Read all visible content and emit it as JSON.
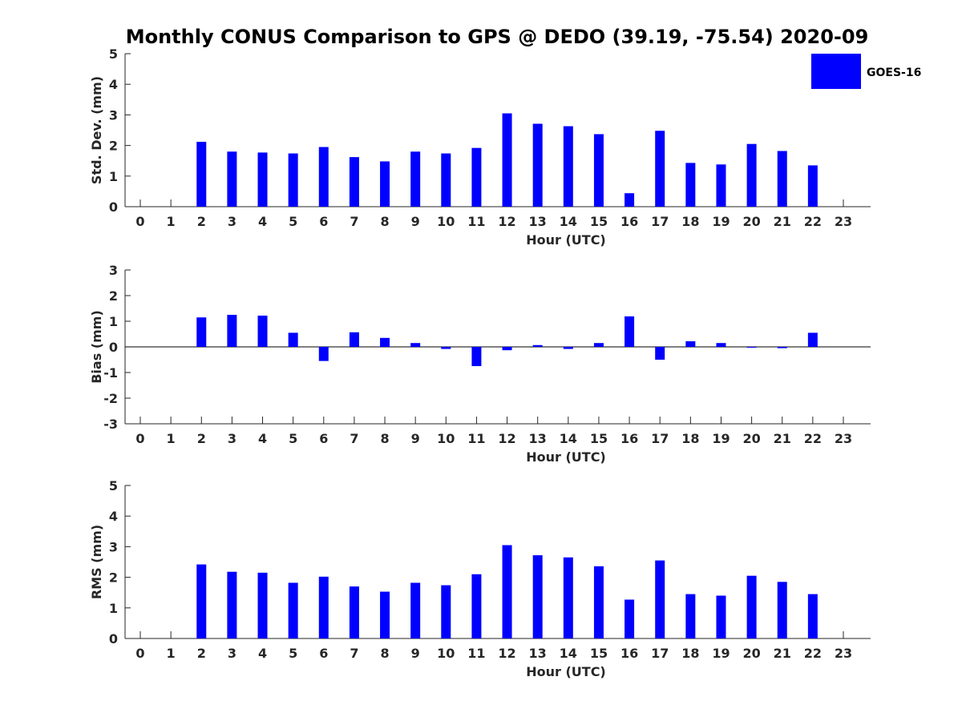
{
  "figure_title": "Monthly CONUS Comparison to GPS @ DEDO (39.19, -75.54) 2020-09",
  "legend": {
    "label": "GOES-16",
    "color": "#0000ff",
    "placement": "top-right"
  },
  "bar_color": "#0000ff",
  "chart_data": [
    {
      "type": "bar",
      "id": "std",
      "ylabel": "Std. Dev. (mm)",
      "xlabel": "Hour (UTC)",
      "ylim": [
        0,
        5
      ],
      "yticks": [
        0,
        1,
        2,
        3,
        4,
        5
      ],
      "categories": [
        "0",
        "1",
        "2",
        "3",
        "4",
        "5",
        "6",
        "7",
        "8",
        "9",
        "10",
        "11",
        "12",
        "13",
        "14",
        "15",
        "16",
        "17",
        "18",
        "19",
        "20",
        "21",
        "22",
        "23"
      ],
      "series": [
        {
          "name": "GOES-16",
          "values": [
            null,
            null,
            2.12,
            1.8,
            1.77,
            1.74,
            1.95,
            1.62,
            1.48,
            1.8,
            1.74,
            1.92,
            3.05,
            2.71,
            2.63,
            2.37,
            0.44,
            2.48,
            1.43,
            1.38,
            2.05,
            1.82,
            1.35,
            null
          ]
        }
      ]
    },
    {
      "type": "bar",
      "id": "bias",
      "ylabel": "Bias (mm)",
      "xlabel": "Hour (UTC)",
      "ylim": [
        -3,
        3
      ],
      "yticks": [
        -3,
        -2,
        -1,
        0,
        1,
        2,
        3
      ],
      "categories": [
        "0",
        "1",
        "2",
        "3",
        "4",
        "5",
        "6",
        "7",
        "8",
        "9",
        "10",
        "11",
        "12",
        "13",
        "14",
        "15",
        "16",
        "17",
        "18",
        "19",
        "20",
        "21",
        "22",
        "23"
      ],
      "series": [
        {
          "name": "GOES-16",
          "values": [
            null,
            null,
            1.15,
            1.25,
            1.22,
            0.55,
            -0.55,
            0.57,
            0.35,
            0.15,
            -0.08,
            -0.75,
            -0.13,
            0.07,
            -0.08,
            0.15,
            1.19,
            -0.5,
            0.22,
            0.15,
            -0.02,
            -0.05,
            0.55,
            null
          ]
        }
      ]
    },
    {
      "type": "bar",
      "id": "rms",
      "ylabel": "RMS (mm)",
      "xlabel": "Hour (UTC)",
      "ylim": [
        0,
        5
      ],
      "yticks": [
        0,
        1,
        2,
        3,
        4,
        5
      ],
      "categories": [
        "0",
        "1",
        "2",
        "3",
        "4",
        "5",
        "6",
        "7",
        "8",
        "9",
        "10",
        "11",
        "12",
        "13",
        "14",
        "15",
        "16",
        "17",
        "18",
        "19",
        "20",
        "21",
        "22",
        "23"
      ],
      "series": [
        {
          "name": "GOES-16",
          "values": [
            null,
            null,
            2.42,
            2.18,
            2.15,
            1.82,
            2.02,
            1.7,
            1.53,
            1.82,
            1.74,
            2.1,
            3.05,
            2.72,
            2.65,
            2.36,
            1.27,
            2.55,
            1.45,
            1.4,
            2.05,
            1.85,
            1.45,
            null
          ]
        }
      ]
    }
  ]
}
